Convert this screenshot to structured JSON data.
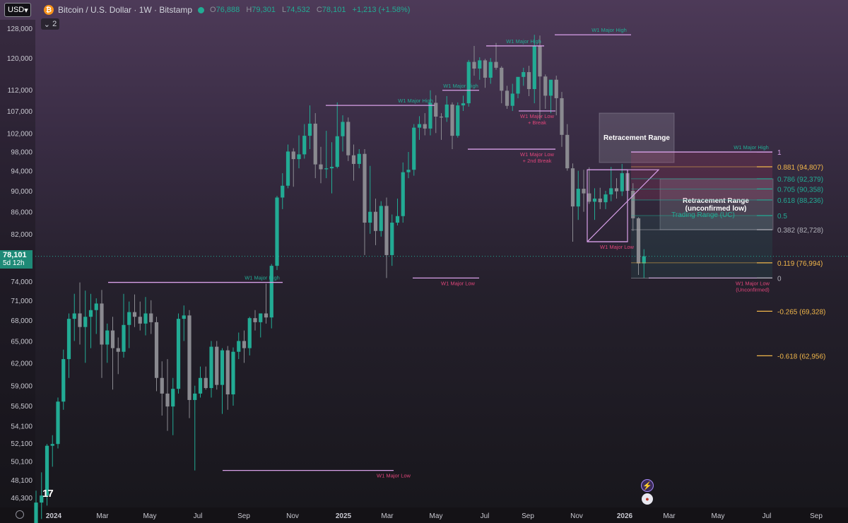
{
  "header": {
    "currency_button": "USD",
    "symbol_title": "Bitcoin / U.S. Dollar · 1W · Bitstamp",
    "ohlc": [
      {
        "label": "O",
        "value": "76,888"
      },
      {
        "label": "H",
        "value": "79,301"
      },
      {
        "label": "L",
        "value": "74,532"
      },
      {
        "label": "C",
        "value": "78,101"
      },
      {
        "label": "",
        "value": "+1,213 (+1.58%)"
      }
    ],
    "indicators_count": "2"
  },
  "price_badge": {
    "price": "78,101",
    "countdown": "5d 12h"
  },
  "logo_text": "17",
  "colors": {
    "up": "#22ab94",
    "down": "#8a8a90",
    "line": "#d8a0e8",
    "label_green": "#22ab94",
    "label_red": "#e0457a",
    "fib_orange": "#f0b64a"
  },
  "chart_data": {
    "type": "candlestick",
    "title": "Bitcoin / U.S. Dollar · 1W · Bitstamp",
    "y_axis": {
      "scale": "log",
      "ticks": [
        "128,000",
        "120,000",
        "112,000",
        "107,000",
        "102,000",
        "98,000",
        "94,000",
        "90,000",
        "86,000",
        "82,000",
        "78,101",
        "74,000",
        "71,000",
        "68,000",
        "65,000",
        "62,000",
        "59,000",
        "56,500",
        "54,100",
        "52,100",
        "50,100",
        "48,100",
        "46,300"
      ]
    },
    "x_axis": {
      "ticks": [
        "2024",
        "Mar",
        "May",
        "Jul",
        "Sep",
        "Nov",
        "2025",
        "Mar",
        "May",
        "Jul",
        "Sep",
        "Nov",
        "2026",
        "Mar",
        "May",
        "Jul",
        "Sep"
      ]
    },
    "candles": [
      [
        42800,
        47000,
        41500,
        45800
      ],
      [
        45800,
        48900,
        44200,
        46500
      ],
      [
        46500,
        52000,
        45500,
        51800
      ],
      [
        51800,
        53000,
        49500,
        52000
      ],
      [
        52000,
        57500,
        51500,
        57000
      ],
      [
        57000,
        63800,
        56000,
        62500
      ],
      [
        62500,
        69000,
        60000,
        68200
      ],
      [
        68200,
        72000,
        65000,
        69000
      ],
      [
        69000,
        73800,
        64500,
        67000
      ],
      [
        67000,
        72500,
        62000,
        68500
      ],
      [
        68500,
        72000,
        64000,
        69500
      ],
      [
        69500,
        71300,
        66000,
        70500
      ],
      [
        70500,
        72600,
        60000,
        64500
      ],
      [
        64500,
        67500,
        62000,
        66500
      ],
      [
        66500,
        68500,
        58500,
        64000
      ],
      [
        64000,
        65500,
        60500,
        63500
      ],
      [
        63500,
        72000,
        62700,
        67300
      ],
      [
        67300,
        70800,
        64000,
        69200
      ],
      [
        69200,
        71900,
        67000,
        68500
      ],
      [
        68500,
        70800,
        66500,
        67500
      ],
      [
        67500,
        71500,
        65800,
        69000
      ],
      [
        69000,
        71000,
        66000,
        67700
      ],
      [
        67700,
        68500,
        58300,
        60000
      ],
      [
        60000,
        62200,
        55300,
        58000
      ],
      [
        58000,
        62500,
        53500,
        56400
      ],
      [
        56400,
        60000,
        53000,
        58600
      ],
      [
        58600,
        69000,
        58000,
        68200
      ],
      [
        68200,
        70200,
        65000,
        68700
      ],
      [
        68700,
        69500,
        55000,
        57200
      ],
      [
        57200,
        59000,
        49100,
        58000
      ],
      [
        58000,
        61500,
        57500,
        60000
      ],
      [
        60000,
        61500,
        58500,
        58700
      ],
      [
        58700,
        65000,
        57500,
        64200
      ],
      [
        64200,
        65000,
        58500,
        59100
      ],
      [
        59100,
        64000,
        55500,
        63700
      ],
      [
        63700,
        64300,
        56000,
        57900
      ],
      [
        57900,
        64100,
        56500,
        63500
      ],
      [
        63500,
        66200,
        62500,
        65000
      ],
      [
        65000,
        66500,
        62000,
        64000
      ],
      [
        64000,
        68500,
        63000,
        68300
      ],
      [
        68300,
        69500,
        66500,
        67700
      ],
      [
        67700,
        69000,
        65500,
        69000
      ],
      [
        69000,
        73600,
        67500,
        68400
      ],
      [
        68400,
        76800,
        66800,
        76500
      ],
      [
        76500,
        89000,
        75800,
        88700
      ],
      [
        88700,
        93500,
        86500,
        91000
      ],
      [
        91000,
        99500,
        90500,
        98000
      ],
      [
        98000,
        98700,
        90800,
        96400
      ],
      [
        96400,
        101500,
        94500,
        97400
      ],
      [
        97400,
        104000,
        96500,
        101400
      ],
      [
        101400,
        108300,
        98500,
        104100
      ],
      [
        104100,
        106500,
        92500,
        95300
      ],
      [
        95300,
        99000,
        91500,
        94300
      ],
      [
        94300,
        102500,
        92500,
        94500
      ],
      [
        94500,
        100000,
        89500,
        94800
      ],
      [
        94800,
        109000,
        94500,
        101300
      ],
      [
        101300,
        106000,
        98000,
        104500
      ],
      [
        104500,
        105500,
        96000,
        97200
      ],
      [
        97200,
        99500,
        92000,
        95400
      ],
      [
        95400,
        98500,
        94500,
        97500
      ],
      [
        97500,
        98500,
        78300,
        84000
      ],
      [
        84000,
        95000,
        82000,
        86000
      ],
      [
        86000,
        88500,
        80000,
        82500
      ],
      [
        82500,
        88000,
        81500,
        87100
      ],
      [
        87100,
        88700,
        74500,
        78300
      ],
      [
        78300,
        85500,
        76500,
        84000
      ],
      [
        84000,
        88500,
        83500,
        85200
      ],
      [
        85200,
        95700,
        84000,
        93700
      ],
      [
        93700,
        97900,
        92500,
        94200
      ],
      [
        94200,
        104000,
        93000,
        103200
      ],
      [
        103200,
        105800,
        100500,
        104000
      ],
      [
        104000,
        106500,
        101500,
        103000
      ],
      [
        103000,
        111900,
        101500,
        108900
      ],
      [
        108900,
        110700,
        102000,
        105700
      ],
      [
        105700,
        106500,
        100500,
        105500
      ],
      [
        105500,
        110500,
        104500,
        108500
      ],
      [
        108500,
        109000,
        98500,
        101400
      ],
      [
        101400,
        109000,
        101000,
        108300
      ],
      [
        108300,
        110600,
        107000,
        108800
      ],
      [
        108800,
        119500,
        108000,
        119000
      ],
      [
        119000,
        123200,
        115500,
        117300
      ],
      [
        117300,
        120200,
        114500,
        119400
      ],
      [
        119400,
        119800,
        112500,
        115000
      ],
      [
        115000,
        120000,
        113500,
        119000
      ],
      [
        119000,
        124000,
        117000,
        117500
      ],
      [
        117500,
        117900,
        108800,
        111800
      ],
      [
        111800,
        113000,
        107500,
        108200
      ],
      [
        108200,
        113500,
        107000,
        111100
      ],
      [
        111100,
        115000,
        110000,
        115200
      ],
      [
        115200,
        117500,
        113000,
        116400
      ],
      [
        116400,
        118000,
        110500,
        112200
      ],
      [
        112200,
        126200,
        108800,
        123300
      ],
      [
        123300,
        126000,
        105000,
        115300
      ],
      [
        115300,
        115800,
        107500,
        110600
      ],
      [
        110600,
        114000,
        106500,
        114500
      ],
      [
        114500,
        115500,
        106000,
        110000
      ],
      [
        110000,
        111500,
        99000,
        101600
      ],
      [
        101600,
        104000,
        94000,
        94500
      ],
      [
        94500,
        95500,
        80600,
        87000
      ],
      [
        87000,
        94000,
        84500,
        90400
      ],
      [
        90400,
        94200,
        86000,
        89500
      ],
      [
        89500,
        94700,
        87500,
        87900
      ],
      [
        87900,
        90500,
        84500,
        88500
      ],
      [
        88500,
        90600,
        86500,
        87800
      ],
      [
        87800,
        90000,
        86500,
        89300
      ],
      [
        89300,
        94800,
        88000,
        90500
      ],
      [
        90500,
        92500,
        88500,
        89900
      ],
      [
        89900,
        95400,
        89000,
        93500
      ],
      [
        93500,
        94000,
        86000,
        90000
      ],
      [
        90000,
        91500,
        82500,
        84800
      ],
      [
        84800,
        85000,
        75000,
        76900
      ],
      [
        76900,
        79300,
        74500,
        78100
      ]
    ]
  },
  "annotations": {
    "major_levels": [
      {
        "label": "W1 Major High",
        "price": 73800,
        "tone": "green"
      },
      {
        "label": "W1 Major Low",
        "price": 49100,
        "tone": "red"
      },
      {
        "label": "W1 Major High",
        "price": 108300,
        "tone": "green"
      },
      {
        "label": "W1 Major Low",
        "price": 74500,
        "tone": "red"
      },
      {
        "label": "W1 Major High",
        "price": 111900,
        "tone": "green"
      },
      {
        "label": "W1 Major High",
        "price": 123200,
        "tone": "green"
      },
      {
        "label": "W1 Major Low",
        "label2": "+ Break",
        "price": 107000,
        "tone": "red"
      },
      {
        "label": "W1 Major Low",
        "label2": "+ 2nd Break",
        "price": 98500,
        "tone": "red"
      },
      {
        "label": "W1 Major High",
        "price": 126200,
        "tone": "green"
      },
      {
        "label": "W1 Major High",
        "price": 97900,
        "tone": "green"
      },
      {
        "label": "W1 Major Low",
        "price": 80600,
        "tone": "red"
      },
      {
        "label": "W1 Major Low",
        "label2": "(Unconfirmed)",
        "price": 74500,
        "tone": "red"
      }
    ],
    "boxes": [
      {
        "title": "Retracement Range",
        "subtitle": ""
      },
      {
        "title": "Retracement Range",
        "subtitle": "(unconfirmed low)"
      }
    ],
    "trading_range_label": "Trading Range (UC)",
    "fib_levels": [
      {
        "ratio": "1",
        "price_label": "",
        "price": 97900,
        "color": "#d8a0e8"
      },
      {
        "ratio": "0.881",
        "price_label": "(94,807)",
        "price": 94807,
        "color": "#f0b64a"
      },
      {
        "ratio": "0.786",
        "price_label": "(92,379)",
        "price": 92379,
        "color": "#22ab94"
      },
      {
        "ratio": "0.705",
        "price_label": "(90,358)",
        "price": 90358,
        "color": "#22ab94"
      },
      {
        "ratio": "0.618",
        "price_label": "(88,236)",
        "price": 88236,
        "color": "#22ab94"
      },
      {
        "ratio": "0.5",
        "price_label": "",
        "price": 85300,
        "color": "#22ab94"
      },
      {
        "ratio": "0.382",
        "price_label": "(82,728)",
        "price": 82728,
        "color": "#b0b0b8"
      },
      {
        "ratio": "0.119",
        "price_label": "(76,994)",
        "price": 76994,
        "color": "#f0b64a"
      },
      {
        "ratio": "0",
        "price_label": "",
        "price": 74500,
        "color": "#b0b0b8"
      },
      {
        "ratio": "-0.265",
        "price_label": "(69,328)",
        "price": 69328,
        "color": "#f0b64a"
      },
      {
        "ratio": "-0.618",
        "price_label": "(62,956)",
        "price": 62956,
        "color": "#f0b64a"
      }
    ]
  }
}
